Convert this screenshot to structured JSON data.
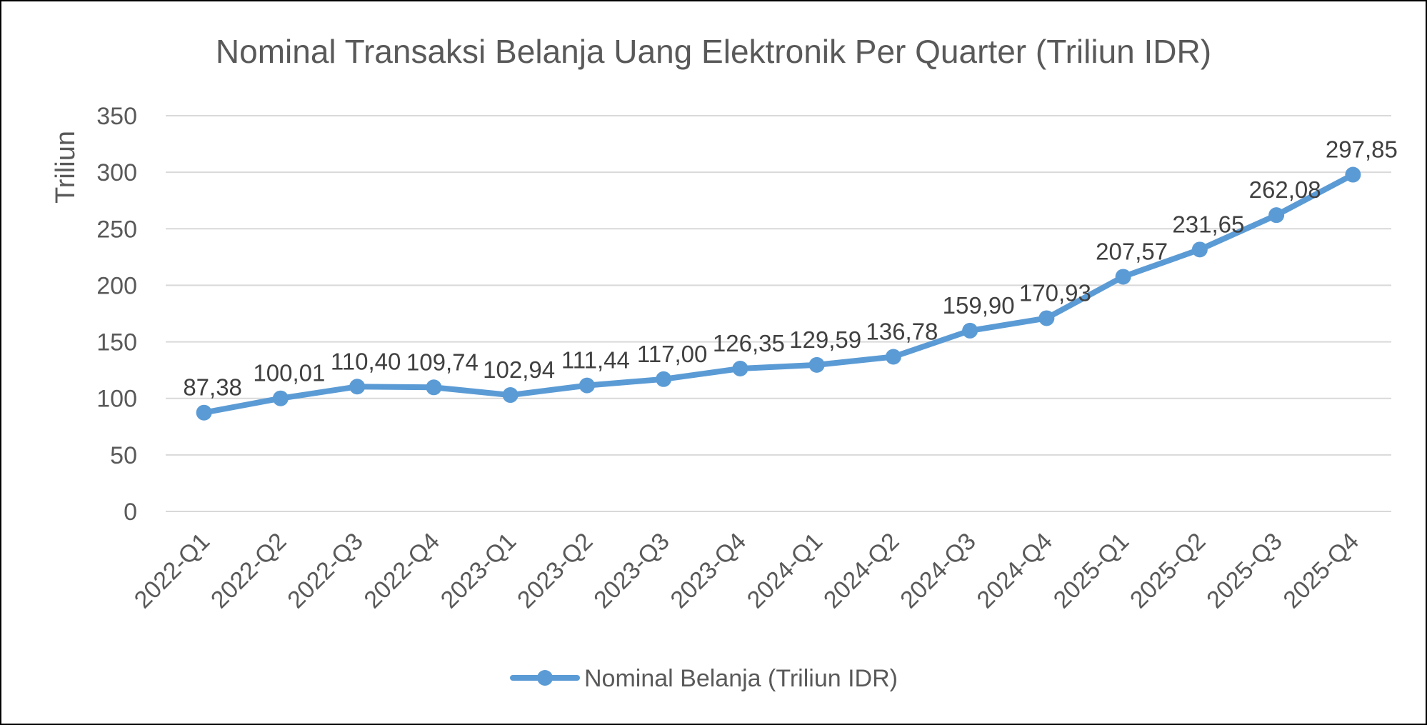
{
  "chart_data": {
    "type": "line",
    "title": "Nominal Transaksi Belanja Uang Elektronik Per Quarter (Triliun IDR)",
    "xlabel": "",
    "ylabel": "Triliun",
    "ylim": [
      0,
      350
    ],
    "yticks": [
      0,
      50,
      100,
      150,
      200,
      250,
      300,
      350
    ],
    "grid": true,
    "legend_position": "bottom",
    "categories": [
      "2022-Q1",
      "2022-Q2",
      "2022-Q3",
      "2022-Q4",
      "2023-Q1",
      "2023-Q2",
      "2023-Q3",
      "2023-Q4",
      "2024-Q1",
      "2024-Q2",
      "2024-Q3",
      "2024-Q4",
      "2025-Q1",
      "2025-Q2",
      "2025-Q3",
      "2025-Q4"
    ],
    "series": [
      {
        "name": "Nominal Belanja (Triliun IDR)",
        "color": "#5B9BD5",
        "values": [
          87.38,
          100.01,
          110.4,
          109.74,
          102.94,
          111.44,
          117.0,
          126.35,
          129.59,
          136.78,
          159.9,
          170.93,
          207.57,
          231.65,
          262.08,
          297.85
        ],
        "data_labels": [
          "87,38",
          "100,01",
          "110,40",
          "109,74",
          "102,94",
          "111,44",
          "117,00",
          "126,35",
          "129,59",
          "136,78",
          "159,90",
          "170,93",
          "207,57",
          "231,65",
          "262,08",
          "297,85"
        ]
      }
    ]
  }
}
